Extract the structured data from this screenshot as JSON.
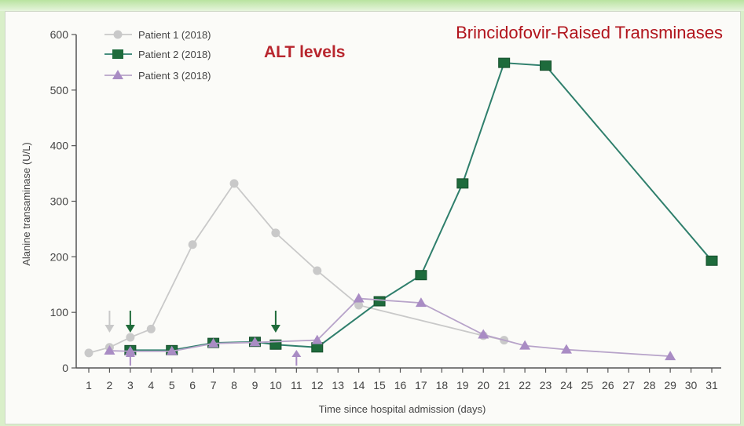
{
  "chart_data": {
    "type": "line",
    "title": "Brincidofovir-Raised Transminases",
    "subtitle": "ALT levels",
    "xlabel": "Time since hospital admission (days)",
    "ylabel": "Alanine transaminase (U/L)",
    "ylim": [
      0,
      600
    ],
    "yticks": [
      0,
      100,
      200,
      300,
      400,
      500,
      600
    ],
    "xticks": [
      1,
      2,
      3,
      4,
      5,
      6,
      7,
      8,
      9,
      10,
      11,
      12,
      13,
      14,
      15,
      16,
      17,
      18,
      19,
      20,
      21,
      22,
      23,
      24,
      25,
      26,
      27,
      28,
      29,
      30,
      31
    ],
    "legend_position": "top-left",
    "series": [
      {
        "name": "Patient 1 (2018)",
        "color": "#c9c9c9",
        "marker": "circle",
        "x": [
          1,
          2,
          3,
          4,
          6,
          8,
          10,
          12,
          14,
          20,
          21
        ],
        "y": [
          27,
          37,
          55,
          70,
          222,
          332,
          243,
          175,
          113,
          58,
          50
        ]
      },
      {
        "name": "Patient 2 (2018)",
        "color": "#2f7f6c",
        "marker": "square",
        "x": [
          3,
          5,
          7,
          9,
          10,
          12,
          15,
          17,
          19,
          21,
          23,
          31
        ],
        "y": [
          32,
          32,
          45,
          47,
          42,
          37,
          120,
          167,
          332,
          549,
          544,
          193
        ]
      },
      {
        "name": "Patient 3 (2018)",
        "color": "#b7a3c9",
        "marker": "triangle",
        "x": [
          2,
          3,
          5,
          7,
          9,
          12,
          14,
          17,
          20,
          22,
          24,
          29
        ],
        "y": [
          31,
          30,
          30,
          44,
          46,
          50,
          125,
          117,
          60,
          40,
          33,
          21
        ]
      }
    ],
    "arrows": [
      {
        "x": 2,
        "direction": "down",
        "color": "#c9c9c9"
      },
      {
        "x": 3,
        "direction": "down",
        "color": "#1f6b3a"
      },
      {
        "x": 10,
        "direction": "down",
        "color": "#1f6b3a"
      },
      {
        "x": 3,
        "direction": "up",
        "color": "#a98cc4"
      },
      {
        "x": 11,
        "direction": "up",
        "color": "#a98cc4"
      }
    ]
  }
}
